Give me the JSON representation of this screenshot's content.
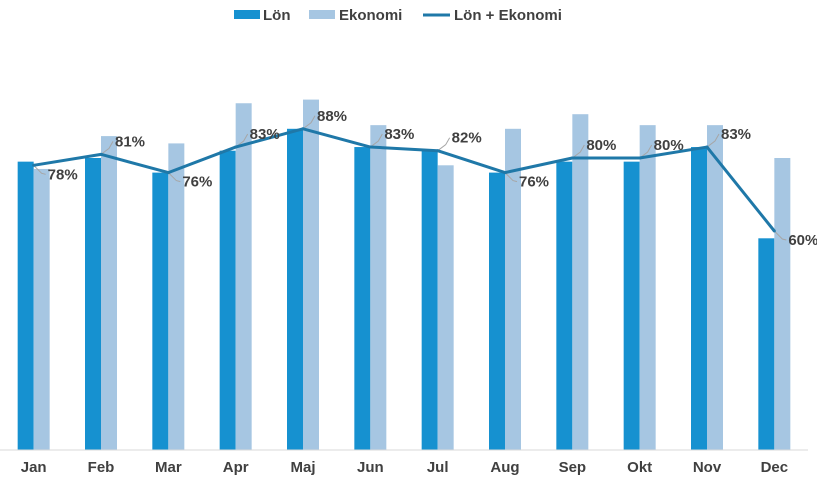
{
  "chart_data": {
    "type": "bar",
    "categories": [
      "Jan",
      "Feb",
      "Mar",
      "Apr",
      "Maj",
      "Jun",
      "Jul",
      "Aug",
      "Sep",
      "Okt",
      "Nov",
      "Dec"
    ],
    "series": [
      {
        "name": "Lön",
        "kind": "bar",
        "color": "#1691d0",
        "values": [
          79,
          80,
          76,
          82,
          88,
          83,
          82,
          76,
          79,
          79,
          83,
          58
        ]
      },
      {
        "name": "Ekonomi",
        "kind": "bar",
        "color": "#a6c6e2",
        "values": [
          77,
          86,
          84,
          95,
          96,
          89,
          78,
          88,
          92,
          89,
          89,
          80
        ]
      },
      {
        "name": "Lön + Ekonomi",
        "kind": "line",
        "color": "#1f78a8",
        "values": [
          78,
          81,
          76,
          83,
          88,
          83,
          82,
          76,
          80,
          80,
          83,
          60
        ],
        "labels": [
          "78%",
          "81%",
          "76%",
          "83%",
          "88%",
          "83%",
          "82%",
          "76%",
          "80%",
          "80%",
          "83%",
          "60%"
        ]
      }
    ],
    "ylim": [
      0,
      100
    ],
    "grid": false,
    "legend_position": "top-center"
  }
}
